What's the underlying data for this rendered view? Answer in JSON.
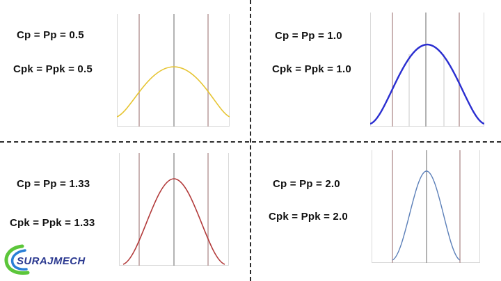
{
  "panels": [
    {
      "cp": "Cp = Pp = 0.5",
      "cpk": "Cpk = Ppk = 0.5",
      "curve_color": "#e6c431",
      "value": 0.5
    },
    {
      "cp": "Cp = Pp = 1.0",
      "cpk": "Cpk = Ppk = 1.0",
      "curve_color": "#2a2ed0",
      "value": 1.0
    },
    {
      "cp": "Cp = Pp = 1.33",
      "cpk": "Cpk = Ppk = 1.33",
      "curve_color": "#b23a3a",
      "value": 1.33
    },
    {
      "cp": "Cp = Pp = 2.0",
      "cpk": "Cpk = Ppk = 2.0",
      "curve_color": "#5b7fb8",
      "value": 2.0
    }
  ],
  "logo": {
    "text": "SURAJMECH",
    "colors": {
      "swoosh_green": "#5cc63a",
      "swoosh_blue": "#2a7fd6",
      "text": "#2b3990"
    }
  },
  "colors": {
    "spec_line": "#b99a9a",
    "center_line": "#9a9a9a",
    "frame": "#d9d9d9"
  }
}
